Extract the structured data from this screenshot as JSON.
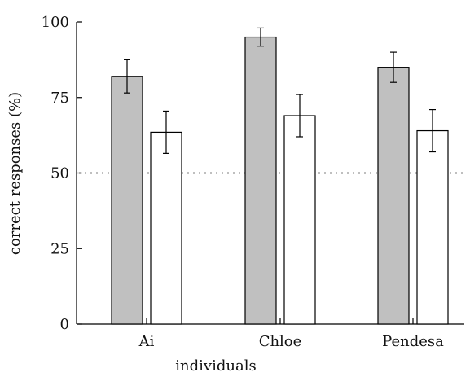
{
  "chart_data": {
    "type": "bar",
    "categories": [
      "Ai",
      "Chloe",
      "Pendesa"
    ],
    "series": [
      {
        "values": [
          82,
          95,
          85
        ],
        "error": [
          5.5,
          3.0,
          5.0
        ],
        "color": "#c0c0c0"
      },
      {
        "values": [
          63.5,
          69,
          64
        ],
        "error": [
          7.0,
          7.0,
          7.0
        ],
        "color": "#ffffff"
      }
    ],
    "reference_line": {
      "y": 50,
      "style": "dotted"
    },
    "xlabel": "individuals",
    "ylabel": "correct responses (%)",
    "ylim": [
      0,
      100
    ],
    "yticks": [
      0,
      25,
      50,
      75,
      100
    ],
    "grid": false
  }
}
